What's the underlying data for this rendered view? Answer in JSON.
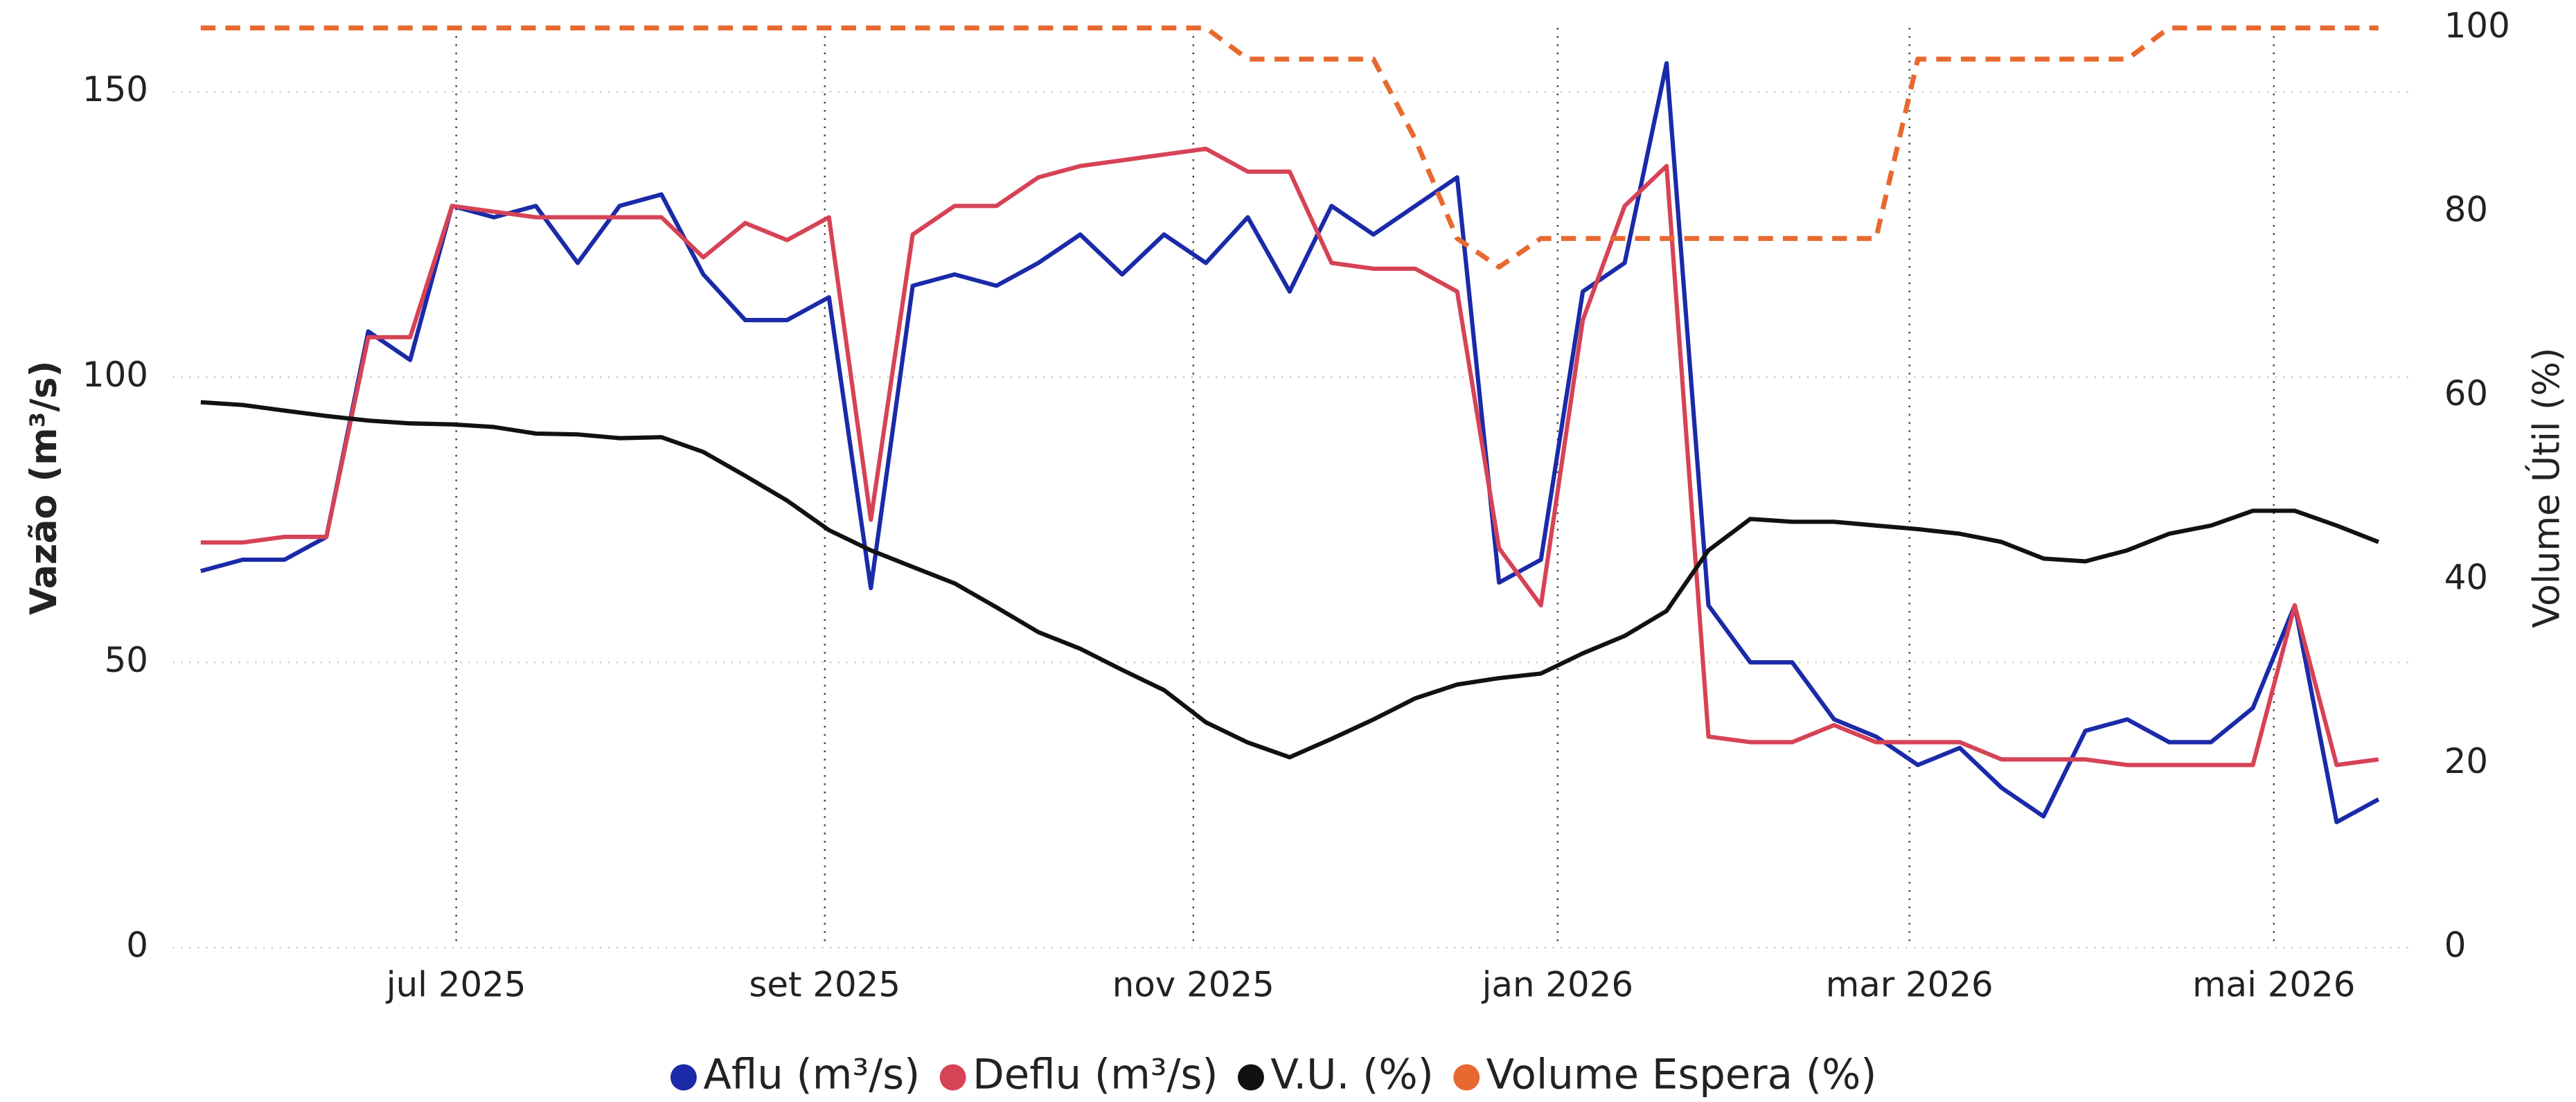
{
  "chart_data": {
    "type": "line",
    "y_label": "Vazão (m³/s)",
    "y2_label": "Volume Útil (%)",
    "xlim": [
      0,
      52
    ],
    "xticks": [
      {
        "value": 6.1,
        "label": "jul 2025"
      },
      {
        "value": 14.9,
        "label": "set 2025"
      },
      {
        "value": 23.7,
        "label": "nov 2025"
      },
      {
        "value": 32.4,
        "label": "jan 2026"
      },
      {
        "value": 40.8,
        "label": "mar 2026"
      },
      {
        "value": 49.5,
        "label": "mai 2026"
      }
    ],
    "ylim": [
      0,
      161.2
    ],
    "yticks": [
      0,
      50,
      100,
      150
    ],
    "y2lim": [
      0,
      100
    ],
    "y2ticks": [
      0,
      20,
      40,
      60,
      80,
      100
    ],
    "grid": true,
    "series": [
      {
        "name": "Aflu (m³/s)",
        "color": "#1a2aa8",
        "values": [
          66,
          68,
          68,
          72,
          108,
          103,
          130,
          128,
          130,
          120,
          130,
          132,
          118,
          110,
          110,
          114,
          63,
          116,
          118,
          116,
          120,
          125,
          118,
          125,
          120,
          128,
          115,
          130,
          125,
          130,
          135,
          64,
          68,
          115,
          120,
          155,
          60,
          50,
          50,
          40,
          37,
          32,
          35,
          28,
          23,
          38,
          40,
          36,
          36,
          42,
          60,
          22,
          26
        ]
      },
      {
        "name": "Deflu (m³/s)",
        "color": "#d64356",
        "values": [
          71,
          71,
          72,
          72,
          107,
          107,
          130,
          129,
          128,
          128,
          128,
          128,
          121,
          127,
          124,
          128,
          75,
          125,
          130,
          130,
          135,
          137,
          138,
          139,
          140,
          136,
          136,
          120,
          119,
          119,
          115,
          70,
          60,
          110,
          130,
          137,
          37,
          36,
          36,
          39,
          36,
          36,
          36,
          33,
          33,
          33,
          32,
          32,
          32,
          32,
          60,
          32,
          33
        ]
      },
      {
        "name": "V.U. (%)",
        "color": "#111111",
        "axis": "y2",
        "values": [
          59.3,
          59.0,
          58.4,
          57.8,
          57.3,
          57.0,
          56.9,
          56.6,
          55.9,
          55.8,
          55.4,
          55.5,
          53.9,
          51.3,
          48.6,
          45.4,
          43.2,
          41.4,
          39.6,
          37.0,
          34.3,
          32.5,
          30.2,
          28.0,
          24.5,
          22.3,
          20.7,
          22.7,
          24.8,
          27.1,
          28.6,
          29.3,
          29.8,
          32.0,
          33.9,
          36.6,
          43.2,
          46.6,
          46.3,
          46.3,
          45.9,
          45.5,
          45.0,
          44.1,
          42.3,
          42.0,
          43.2,
          45.0,
          45.9,
          47.5,
          47.5,
          45.9,
          44.1
        ]
      },
      {
        "name": "Volume Espera (%)",
        "color": "#e8692f",
        "axis": "y2",
        "dashed": true,
        "values": [
          100,
          100,
          100,
          100,
          100,
          100,
          100,
          100,
          100,
          100,
          100,
          100,
          100,
          100,
          100,
          100,
          100,
          100,
          100,
          100,
          100,
          100,
          100,
          100,
          100,
          96.6,
          96.6,
          96.6,
          96.6,
          87.9,
          77.1,
          74,
          77.1,
          77.1,
          77.1,
          77.1,
          77.1,
          77.1,
          77.1,
          77.1,
          77.1,
          96.6,
          96.6,
          96.6,
          96.6,
          96.6,
          96.6,
          100,
          100,
          100,
          100,
          100,
          100
        ]
      }
    ]
  }
}
